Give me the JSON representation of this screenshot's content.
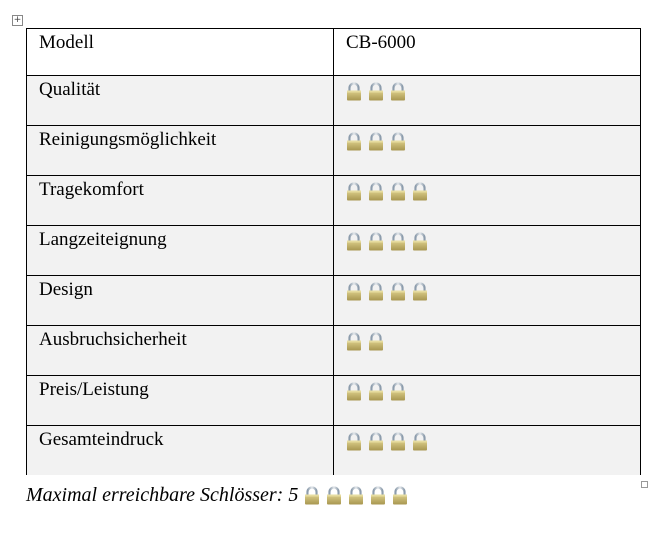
{
  "table": {
    "header": {
      "label": "Modell",
      "value": "CB-6000"
    },
    "rows": [
      {
        "label": "Qualität",
        "locks": 3
      },
      {
        "label": "Reinigungsmöglichkeit",
        "locks": 3
      },
      {
        "label": "Tragekomfort",
        "locks": 4
      },
      {
        "label": "Langzeiteignung",
        "locks": 4
      },
      {
        "label": "Design",
        "locks": 4
      },
      {
        "label": "Ausbruchsicherheit",
        "locks": 2
      },
      {
        "label": "Preis/Leistung",
        "locks": 3
      },
      {
        "label": "Gesamteindruck",
        "locks": 4
      }
    ]
  },
  "footer": {
    "text": "Maximal erreichbare Schlösser: 5",
    "locks": 5
  },
  "icon": "padlock-icon",
  "colors": {
    "row_bg": "#f2f2f2",
    "lock_body": "#c4b46a"
  }
}
